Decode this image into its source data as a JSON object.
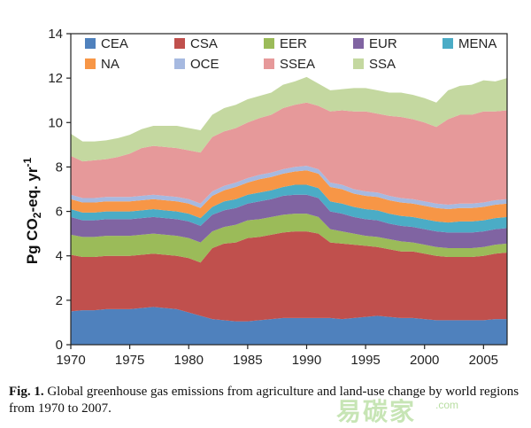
{
  "chart_data": {
    "type": "area",
    "stacked": true,
    "title": "",
    "xlabel": "",
    "ylabel": "Pg CO2-eq. yr-1",
    "ylabel_parts": {
      "main": "Pg CO",
      "sub": "2",
      "mid": "-eq. yr",
      "sup": "-1"
    },
    "xlim": [
      1970,
      2007
    ],
    "ylim": [
      0,
      14
    ],
    "x_ticks": [
      "1970",
      "1975",
      "1980",
      "1985",
      "1990",
      "1995",
      "2000",
      "2005"
    ],
    "x_tick_values": [
      1970,
      1975,
      1980,
      1985,
      1990,
      1995,
      2000,
      2005
    ],
    "y_ticks": [
      "0",
      "2",
      "4",
      "6",
      "8",
      "10",
      "12",
      "14"
    ],
    "y_tick_values": [
      0,
      2,
      4,
      6,
      8,
      10,
      12,
      14
    ],
    "legend_position": "top, inside plot",
    "x": [
      1970,
      1971,
      1972,
      1973,
      1974,
      1975,
      1976,
      1977,
      1978,
      1979,
      1980,
      1981,
      1982,
      1983,
      1984,
      1985,
      1986,
      1987,
      1988,
      1989,
      1990,
      1991,
      1992,
      1993,
      1994,
      1995,
      1996,
      1997,
      1998,
      1999,
      2000,
      2001,
      2002,
      2003,
      2004,
      2005,
      2006,
      2007
    ],
    "series": [
      {
        "name": "CEA",
        "color": "#4f81bd",
        "values": [
          1.5,
          1.55,
          1.55,
          1.6,
          1.6,
          1.6,
          1.65,
          1.7,
          1.65,
          1.6,
          1.45,
          1.3,
          1.15,
          1.1,
          1.05,
          1.05,
          1.1,
          1.15,
          1.2,
          1.2,
          1.2,
          1.2,
          1.2,
          1.15,
          1.2,
          1.25,
          1.3,
          1.25,
          1.2,
          1.2,
          1.15,
          1.1,
          1.1,
          1.1,
          1.1,
          1.1,
          1.15,
          1.15
        ]
      },
      {
        "name": "CSA",
        "color": "#c0504d",
        "values": [
          2.55,
          2.4,
          2.4,
          2.4,
          2.4,
          2.4,
          2.4,
          2.4,
          2.4,
          2.4,
          2.45,
          2.4,
          3.2,
          3.45,
          3.55,
          3.75,
          3.75,
          3.8,
          3.85,
          3.9,
          3.9,
          3.8,
          3.4,
          3.4,
          3.3,
          3.2,
          3.1,
          3.05,
          3.0,
          3.0,
          2.95,
          2.9,
          2.85,
          2.85,
          2.85,
          2.9,
          2.95,
          3.0
        ]
      },
      {
        "name": "EER",
        "color": "#9bbb59",
        "values": [
          0.9,
          0.9,
          0.9,
          0.9,
          0.9,
          0.9,
          0.9,
          0.9,
          0.9,
          0.9,
          0.9,
          0.9,
          0.75,
          0.75,
          0.8,
          0.8,
          0.8,
          0.8,
          0.8,
          0.8,
          0.8,
          0.75,
          0.6,
          0.55,
          0.5,
          0.45,
          0.45,
          0.45,
          0.45,
          0.4,
          0.4,
          0.4,
          0.4,
          0.4,
          0.4,
          0.4,
          0.4,
          0.4
        ]
      },
      {
        "name": "EUR",
        "color": "#8064a2",
        "values": [
          0.8,
          0.75,
          0.75,
          0.75,
          0.75,
          0.75,
          0.75,
          0.75,
          0.75,
          0.75,
          0.75,
          0.75,
          0.75,
          0.75,
          0.75,
          0.75,
          0.8,
          0.8,
          0.85,
          0.85,
          0.85,
          0.85,
          0.8,
          0.8,
          0.75,
          0.75,
          0.75,
          0.7,
          0.7,
          0.7,
          0.7,
          0.7,
          0.7,
          0.7,
          0.7,
          0.7,
          0.7,
          0.7
        ]
      },
      {
        "name": "MENA",
        "color": "#4bacc6",
        "values": [
          0.35,
          0.35,
          0.35,
          0.35,
          0.35,
          0.35,
          0.35,
          0.35,
          0.35,
          0.35,
          0.35,
          0.35,
          0.35,
          0.4,
          0.4,
          0.4,
          0.4,
          0.4,
          0.4,
          0.45,
          0.45,
          0.45,
          0.45,
          0.45,
          0.45,
          0.45,
          0.45,
          0.45,
          0.45,
          0.45,
          0.45,
          0.45,
          0.45,
          0.5,
          0.5,
          0.5,
          0.5,
          0.5
        ]
      },
      {
        "name": "NA",
        "color": "#f79646",
        "values": [
          0.45,
          0.45,
          0.45,
          0.45,
          0.45,
          0.45,
          0.45,
          0.45,
          0.45,
          0.45,
          0.45,
          0.45,
          0.5,
          0.5,
          0.55,
          0.55,
          0.6,
          0.6,
          0.6,
          0.6,
          0.65,
          0.65,
          0.65,
          0.65,
          0.6,
          0.6,
          0.6,
          0.6,
          0.6,
          0.6,
          0.6,
          0.6,
          0.6,
          0.6,
          0.6,
          0.6,
          0.6,
          0.6
        ]
      },
      {
        "name": "OCE",
        "color": "#a6b9e0",
        "values": [
          0.2,
          0.2,
          0.2,
          0.2,
          0.2,
          0.2,
          0.2,
          0.2,
          0.2,
          0.2,
          0.2,
          0.2,
          0.2,
          0.2,
          0.2,
          0.2,
          0.2,
          0.2,
          0.2,
          0.2,
          0.2,
          0.2,
          0.2,
          0.2,
          0.2,
          0.2,
          0.2,
          0.2,
          0.2,
          0.2,
          0.2,
          0.2,
          0.2,
          0.2,
          0.2,
          0.2,
          0.2,
          0.2
        ]
      },
      {
        "name": "SSEA",
        "color": "#e6999a",
        "values": [
          1.75,
          1.65,
          1.7,
          1.7,
          1.8,
          1.95,
          2.15,
          2.2,
          2.2,
          2.2,
          2.2,
          2.3,
          2.45,
          2.45,
          2.45,
          2.5,
          2.55,
          2.6,
          2.75,
          2.8,
          2.85,
          2.85,
          3.2,
          3.35,
          3.5,
          3.6,
          3.55,
          3.6,
          3.65,
          3.6,
          3.55,
          3.45,
          3.85,
          4.0,
          4.0,
          4.1,
          4.0,
          4.0
        ]
      },
      {
        "name": "SSA",
        "color": "#c4d8a0",
        "values": [
          1.0,
          0.9,
          0.85,
          0.85,
          0.85,
          0.85,
          0.85,
          0.9,
          0.95,
          1.0,
          1.0,
          1.0,
          1.0,
          1.05,
          1.05,
          1.05,
          1.0,
          1.0,
          1.05,
          1.05,
          1.15,
          1.0,
          0.95,
          0.95,
          1.05,
          1.05,
          1.05,
          1.05,
          1.1,
          1.1,
          1.1,
          1.1,
          1.3,
          1.3,
          1.35,
          1.4,
          1.35,
          1.45
        ]
      }
    ]
  },
  "caption": {
    "label": "Fig. 1.",
    "text": "Global greenhouse gas emissions from agriculture and land-use change by world regions from 1970 to 2007."
  },
  "watermark": {
    "text": "易碳家",
    "url": ".com"
  }
}
